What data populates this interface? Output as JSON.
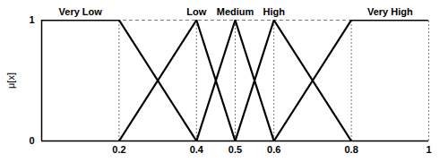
{
  "chart_data": {
    "type": "line",
    "y_label": "μ[x]",
    "xlim": [
      0,
      1
    ],
    "xticks": [
      0.2,
      0.4,
      0.5,
      0.6,
      0.8,
      1
    ],
    "ylim": [
      0,
      1
    ],
    "yticks": [
      0,
      1
    ],
    "grid": true,
    "series": [
      {
        "name": "Very Low",
        "color": "#000000",
        "x": [
          0,
          0.2,
          0.4
        ],
        "values": [
          1,
          1,
          0
        ]
      },
      {
        "name": "Low",
        "color": "#000000",
        "x": [
          0.2,
          0.4,
          0.5
        ],
        "values": [
          0,
          1,
          0
        ]
      },
      {
        "name": "Medium",
        "color": "#000000",
        "x": [
          0.4,
          0.5,
          0.6
        ],
        "values": [
          0,
          1,
          0
        ]
      },
      {
        "name": "High",
        "color": "#000000",
        "x": [
          0.5,
          0.6,
          0.8
        ],
        "values": [
          0,
          1,
          0
        ]
      },
      {
        "name": "Very High",
        "color": "#000000",
        "x": [
          0.6,
          0.8,
          1
        ],
        "values": [
          0,
          1,
          1
        ]
      }
    ]
  }
}
